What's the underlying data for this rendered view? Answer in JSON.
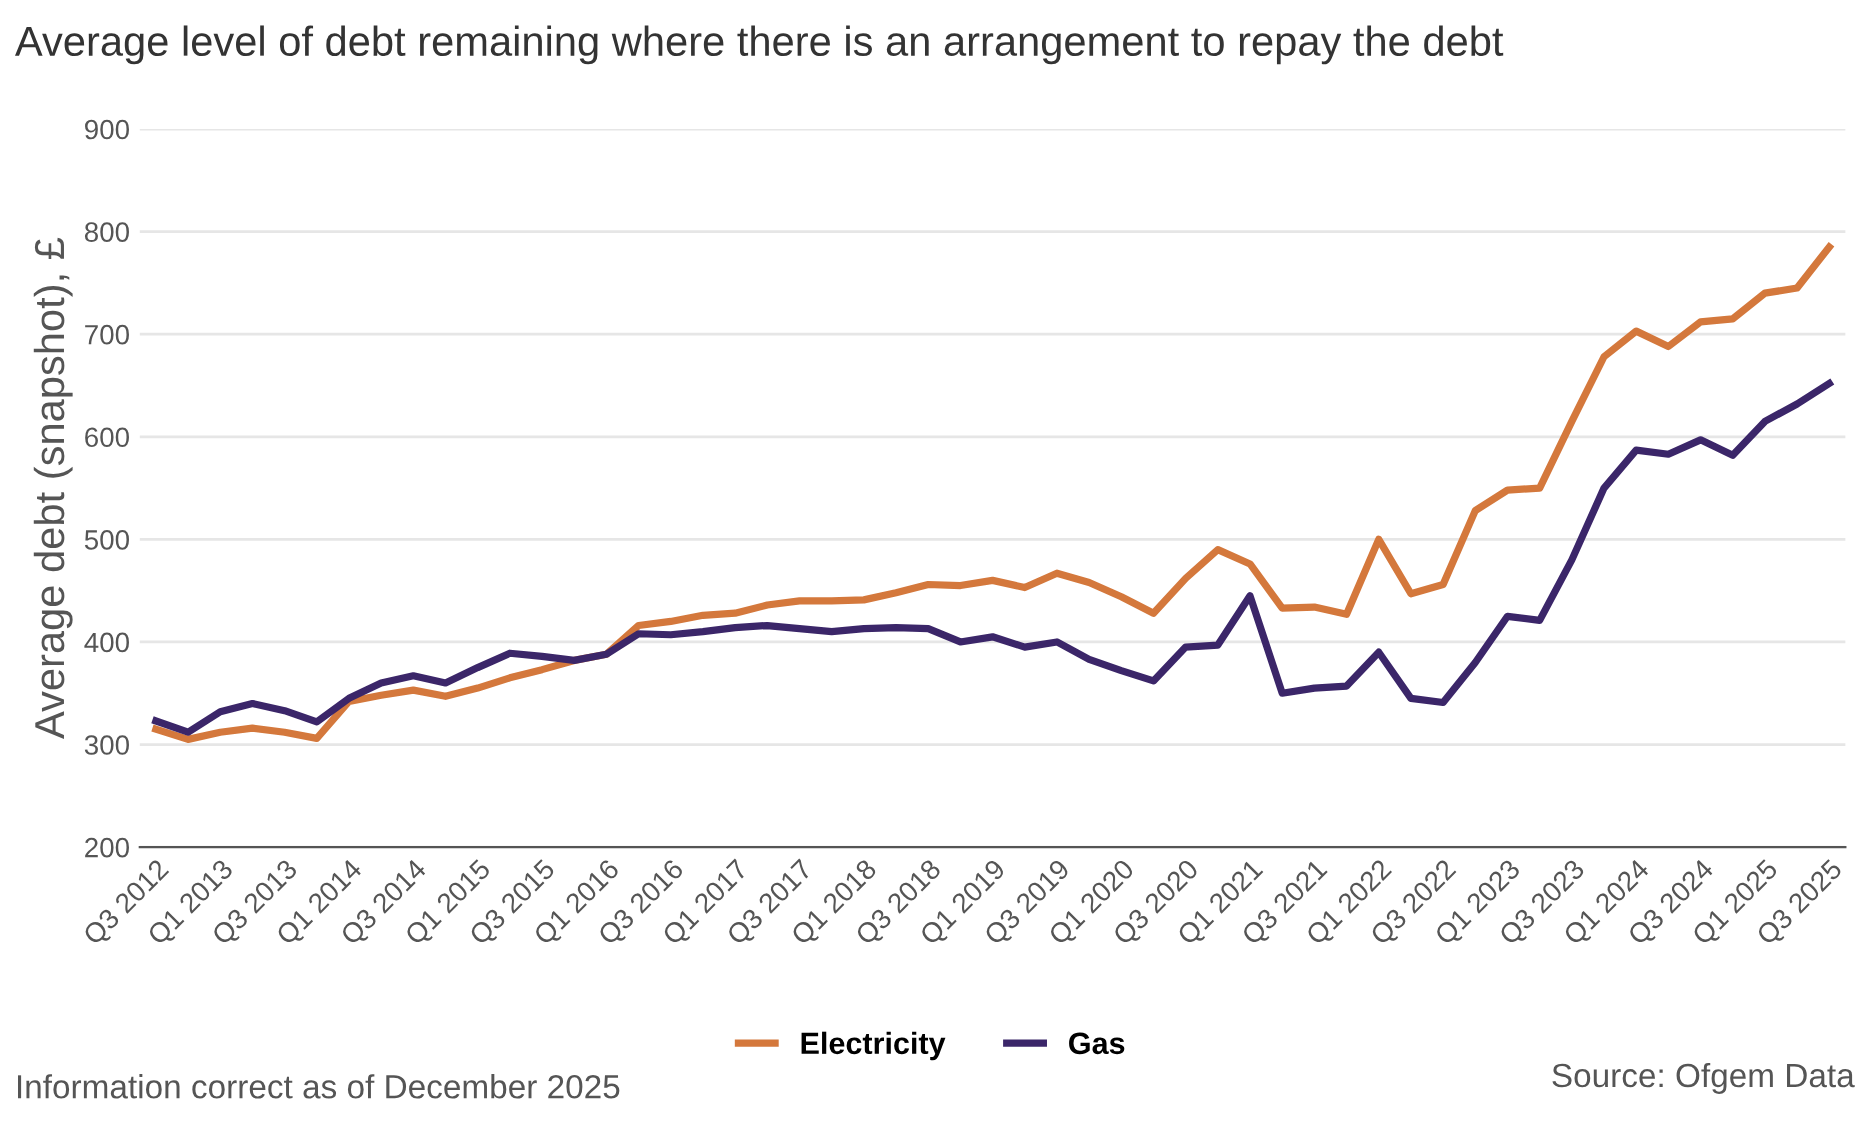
{
  "chart_data": {
    "type": "line",
    "title": "Average level of debt remaining where there is an arrangement to repay the debt",
    "ylabel": "Average debt (snapshot), £",
    "categories": [
      "Q3 2012",
      null,
      "Q1 2013",
      null,
      "Q3 2013",
      null,
      "Q1 2014",
      null,
      "Q3 2014",
      null,
      "Q1 2015",
      null,
      "Q3 2015",
      null,
      "Q1 2016",
      null,
      "Q3 2016",
      null,
      "Q1 2017",
      null,
      "Q3 2017",
      null,
      "Q1 2018",
      null,
      "Q3 2018",
      null,
      "Q1 2019",
      null,
      "Q3 2019",
      null,
      "Q1 2020",
      null,
      "Q3 2020",
      null,
      "Q1 2021",
      null,
      "Q3 2021",
      null,
      "Q1 2022",
      null,
      "Q3 2022",
      null,
      "Q1 2023",
      null,
      "Q3 2023",
      null,
      "Q1 2024",
      null,
      "Q3 2024",
      null,
      "Q1 2025",
      null,
      "Q3 2025"
    ],
    "series": [
      {
        "name": "Electricity",
        "color": "#d4783c",
        "values": [
          315,
          305,
          312,
          316,
          312,
          306,
          342,
          348,
          353,
          347,
          355,
          365,
          373,
          382,
          388,
          416,
          420,
          426,
          428,
          436,
          440,
          440,
          441,
          448,
          456,
          455,
          460,
          453,
          467,
          458,
          444,
          428,
          462,
          490,
          476,
          433,
          434,
          427,
          500,
          447,
          456,
          528,
          548,
          550,
          615,
          678,
          703,
          688,
          712,
          715,
          740,
          745,
          785
        ]
      },
      {
        "name": "Gas",
        "color": "#3b2669",
        "values": [
          323,
          312,
          332,
          340,
          333,
          322,
          345,
          360,
          367,
          360,
          375,
          389,
          386,
          382,
          388,
          408,
          407,
          410,
          414,
          416,
          413,
          410,
          413,
          414,
          413,
          400,
          405,
          395,
          400,
          383,
          372,
          362,
          395,
          397,
          445,
          350,
          355,
          357,
          390,
          345,
          341,
          380,
          425,
          421,
          480,
          550,
          587,
          583,
          597,
          582,
          615,
          632,
          652
        ]
      }
    ],
    "ylim": [
      200,
      900
    ],
    "yticks": [
      200,
      300,
      400,
      500,
      600,
      700,
      800,
      900
    ],
    "grid": "y",
    "legend": "bottom",
    "marker": "none",
    "line_style": "solid",
    "annotations": [
      "Information correct as of December 2025",
      "Source: Ofgem Data"
    ]
  }
}
